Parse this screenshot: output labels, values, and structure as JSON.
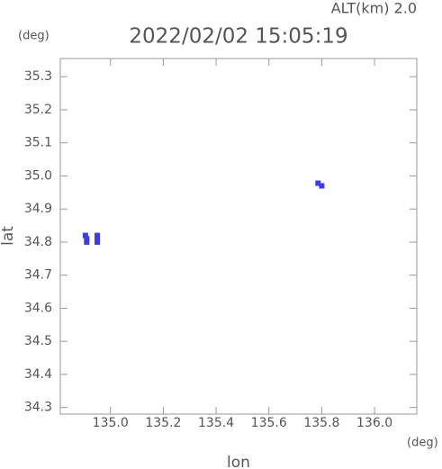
{
  "chart_data": {
    "type": "scatter",
    "title": "2022/02/02 15:05:19",
    "annotation": "ALT(km) 2.0",
    "y_unit": "(deg)",
    "x_unit": "(deg)",
    "xlabel": "lon",
    "ylabel": "lat",
    "color": "#3c3ce6",
    "x": [
      134.905,
      134.91,
      134.91,
      134.95,
      134.95,
      134.95,
      135.786,
      135.8
    ],
    "values": [
      34.82,
      34.81,
      34.8,
      34.82,
      34.81,
      34.8,
      34.978,
      34.97
    ],
    "xlim": [
      134.81,
      136.16
    ],
    "ylim": [
      34.28,
      35.355
    ],
    "xticks": [
      {
        "value": 135,
        "label": "135.0"
      },
      135.2,
      135.4,
      135.6,
      135.8,
      {
        "value": 136,
        "label": "136.0"
      }
    ],
    "yticks": [
      35.3,
      35.2,
      35.1,
      {
        "value": 35,
        "label": "35.0"
      },
      34.9,
      34.8,
      34.7,
      34.6,
      34.5,
      34.4,
      34.3
    ]
  }
}
